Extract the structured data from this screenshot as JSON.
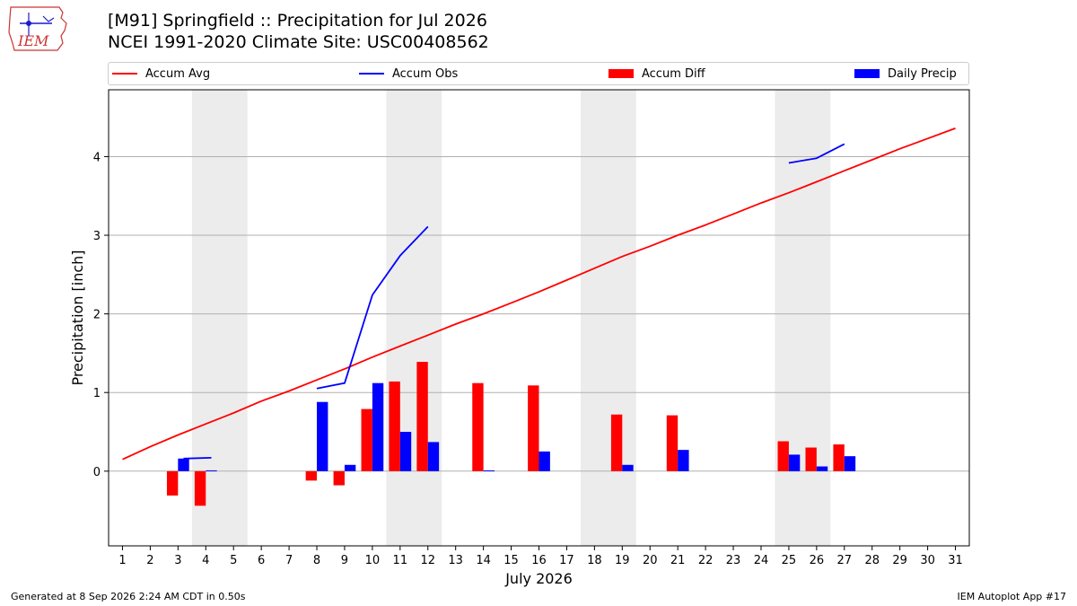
{
  "logo": {
    "text": "IEM"
  },
  "header": {
    "title": "[M91] Springfield :: Precipitation for Jul 2026",
    "subtitle": "NCEI 1991-2020 Climate Site: USC00408562"
  },
  "legend": [
    {
      "label": "Accum Avg",
      "kind": "line",
      "color": "#ff0000"
    },
    {
      "label": "Accum Obs",
      "kind": "line",
      "color": "#0000ff"
    },
    {
      "label": "Accum Diff",
      "kind": "bar",
      "color": "#ff0000"
    },
    {
      "label": "Daily Precip",
      "kind": "bar",
      "color": "#0000ff"
    }
  ],
  "footer": {
    "generated": "Generated at 8 Sep 2026 2:24 AM CDT in 0.50s",
    "app": "IEM Autoplot App #17"
  },
  "chart_data": {
    "type": "bar",
    "title": "[M91] Springfield :: Precipitation for Jul 2026",
    "xlabel": "July 2026",
    "ylabel": "Precipitation [inch]",
    "x": [
      1,
      2,
      3,
      4,
      5,
      6,
      7,
      8,
      9,
      10,
      11,
      12,
      13,
      14,
      15,
      16,
      17,
      18,
      19,
      20,
      21,
      22,
      23,
      24,
      25,
      26,
      27,
      28,
      29,
      30,
      31
    ],
    "xlim": [
      0.5,
      31.5
    ],
    "ylim": [
      -0.95,
      4.85
    ],
    "yticks": [
      0,
      1,
      2,
      3,
      4
    ],
    "grid": "horizontal",
    "legend_position": "top",
    "weekend_shading": [
      [
        3.5,
        5.5
      ],
      [
        10.5,
        12.5
      ],
      [
        17.5,
        19.5
      ],
      [
        24.5,
        26.5
      ]
    ],
    "series": [
      {
        "name": "Accum Avg",
        "type": "line",
        "color": "#ff0000",
        "x": [
          1,
          2,
          3,
          4,
          5,
          6,
          7,
          8,
          9,
          10,
          11,
          12,
          13,
          14,
          15,
          16,
          17,
          18,
          19,
          20,
          21,
          22,
          23,
          24,
          25,
          26,
          27,
          28,
          29,
          30,
          31
        ],
        "values": [
          0.15,
          0.31,
          0.46,
          0.6,
          0.74,
          0.89,
          1.02,
          1.16,
          1.3,
          1.45,
          1.59,
          1.73,
          1.87,
          2.0,
          2.14,
          2.28,
          2.43,
          2.58,
          2.73,
          2.86,
          3.0,
          3.13,
          3.27,
          3.41,
          3.54,
          3.68,
          3.82,
          3.96,
          4.1,
          4.23,
          4.36
        ]
      },
      {
        "name": "Accum Obs",
        "type": "line",
        "color": "#0000ff",
        "x": [
          3.2,
          4.2,
          null,
          8,
          9,
          10,
          11,
          12,
          null,
          25,
          26,
          27
        ],
        "values": [
          0.16,
          0.17,
          null,
          1.05,
          1.12,
          2.24,
          2.74,
          3.11,
          null,
          3.92,
          3.98,
          4.16
        ]
      },
      {
        "name": "Accum Diff",
        "type": "bar",
        "color": "#ff0000",
        "x": [
          3,
          4,
          8,
          9,
          10,
          11,
          12,
          14,
          16,
          19,
          21,
          25,
          26,
          27
        ],
        "values": [
          -0.31,
          -0.44,
          -0.12,
          -0.18,
          0.79,
          1.14,
          1.39,
          1.12,
          1.09,
          0.72,
          0.71,
          0.38,
          0.3,
          0.34
        ]
      },
      {
        "name": "Daily Precip",
        "type": "bar",
        "color": "#0000ff",
        "x": [
          3,
          4,
          8,
          9,
          10,
          11,
          12,
          14,
          16,
          19,
          21,
          25,
          26,
          27
        ],
        "values": [
          0.16,
          0.01,
          0.88,
          0.08,
          1.12,
          0.5,
          0.37,
          0.01,
          0.25,
          0.08,
          0.27,
          0.21,
          0.06,
          0.19
        ]
      }
    ]
  }
}
